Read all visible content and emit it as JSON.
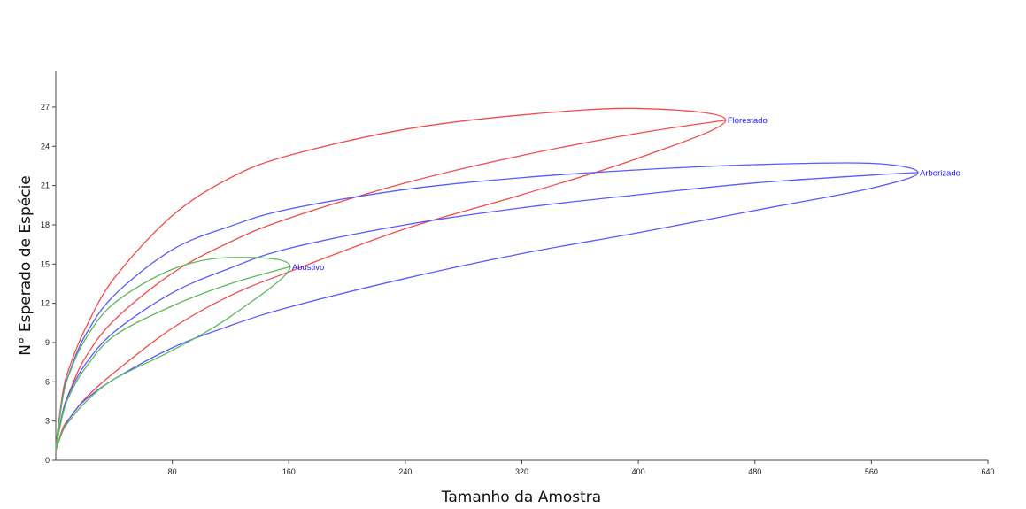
{
  "chart_data": {
    "type": "line",
    "title": "",
    "xlabel": "Tamanho da Amostra",
    "ylabel": "N° Esperado de Espécie",
    "xlim": [
      0,
      640
    ],
    "ylim": [
      0,
      29.5
    ],
    "xticks": [
      80,
      160,
      240,
      320,
      400,
      480,
      560,
      640
    ],
    "yticks": [
      0,
      3,
      6,
      9,
      12,
      15,
      18,
      21,
      24,
      27
    ],
    "grid": false,
    "legend": "none",
    "series": [
      {
        "name": "Florestado",
        "color": "#f24b4b",
        "label_color": "#1a1aff",
        "x": [
          0,
          5,
          10,
          20,
          40,
          80,
          120,
          160,
          240,
          320,
          400,
          460
        ],
        "mean": [
          0.9,
          3.8,
          5.4,
          7.8,
          10.7,
          14.3,
          16.7,
          18.5,
          21.2,
          23.3,
          25.0,
          26.0
        ],
        "upper": [
          1.1,
          5.3,
          7.3,
          10.0,
          13.9,
          18.7,
          21.6,
          23.3,
          25.3,
          26.4,
          26.9,
          26.0
        ],
        "lower": [
          0.7,
          2.5,
          3.3,
          4.7,
          6.7,
          10.1,
          12.6,
          14.4,
          17.7,
          20.3,
          23.1,
          26.0
        ]
      },
      {
        "name": "Arborizado",
        "color": "#5a5aff",
        "label_color": "#1a1aff",
        "x": [
          0,
          5,
          10,
          20,
          40,
          80,
          120,
          160,
          240,
          320,
          400,
          480,
          560,
          592
        ],
        "mean": [
          0.9,
          3.8,
          5.3,
          7.3,
          9.8,
          12.8,
          14.7,
          16.2,
          18.0,
          19.3,
          20.3,
          21.2,
          21.8,
          22.0
        ],
        "upper": [
          1.0,
          5.0,
          6.9,
          9.5,
          12.6,
          16.1,
          17.9,
          19.2,
          20.7,
          21.6,
          22.2,
          22.6,
          22.7,
          22.0
        ],
        "lower": [
          0.8,
          2.3,
          3.3,
          4.6,
          6.2,
          8.6,
          10.3,
          11.7,
          13.9,
          15.8,
          17.4,
          19.1,
          20.8,
          22.0
        ]
      },
      {
        "name": "Abustivo",
        "color": "#5cb85c",
        "label_color": "#1a1aff",
        "x": [
          0,
          5,
          10,
          20,
          40,
          80,
          120,
          161
        ],
        "mean": [
          0.9,
          3.6,
          5.1,
          7.0,
          9.5,
          11.8,
          13.5,
          14.8
        ],
        "upper": [
          1.0,
          4.9,
          6.8,
          9.2,
          12.0,
          14.6,
          15.5,
          14.8
        ],
        "lower": [
          0.8,
          2.3,
          3.1,
          4.4,
          6.2,
          8.4,
          11.0,
          14.8
        ]
      }
    ]
  }
}
